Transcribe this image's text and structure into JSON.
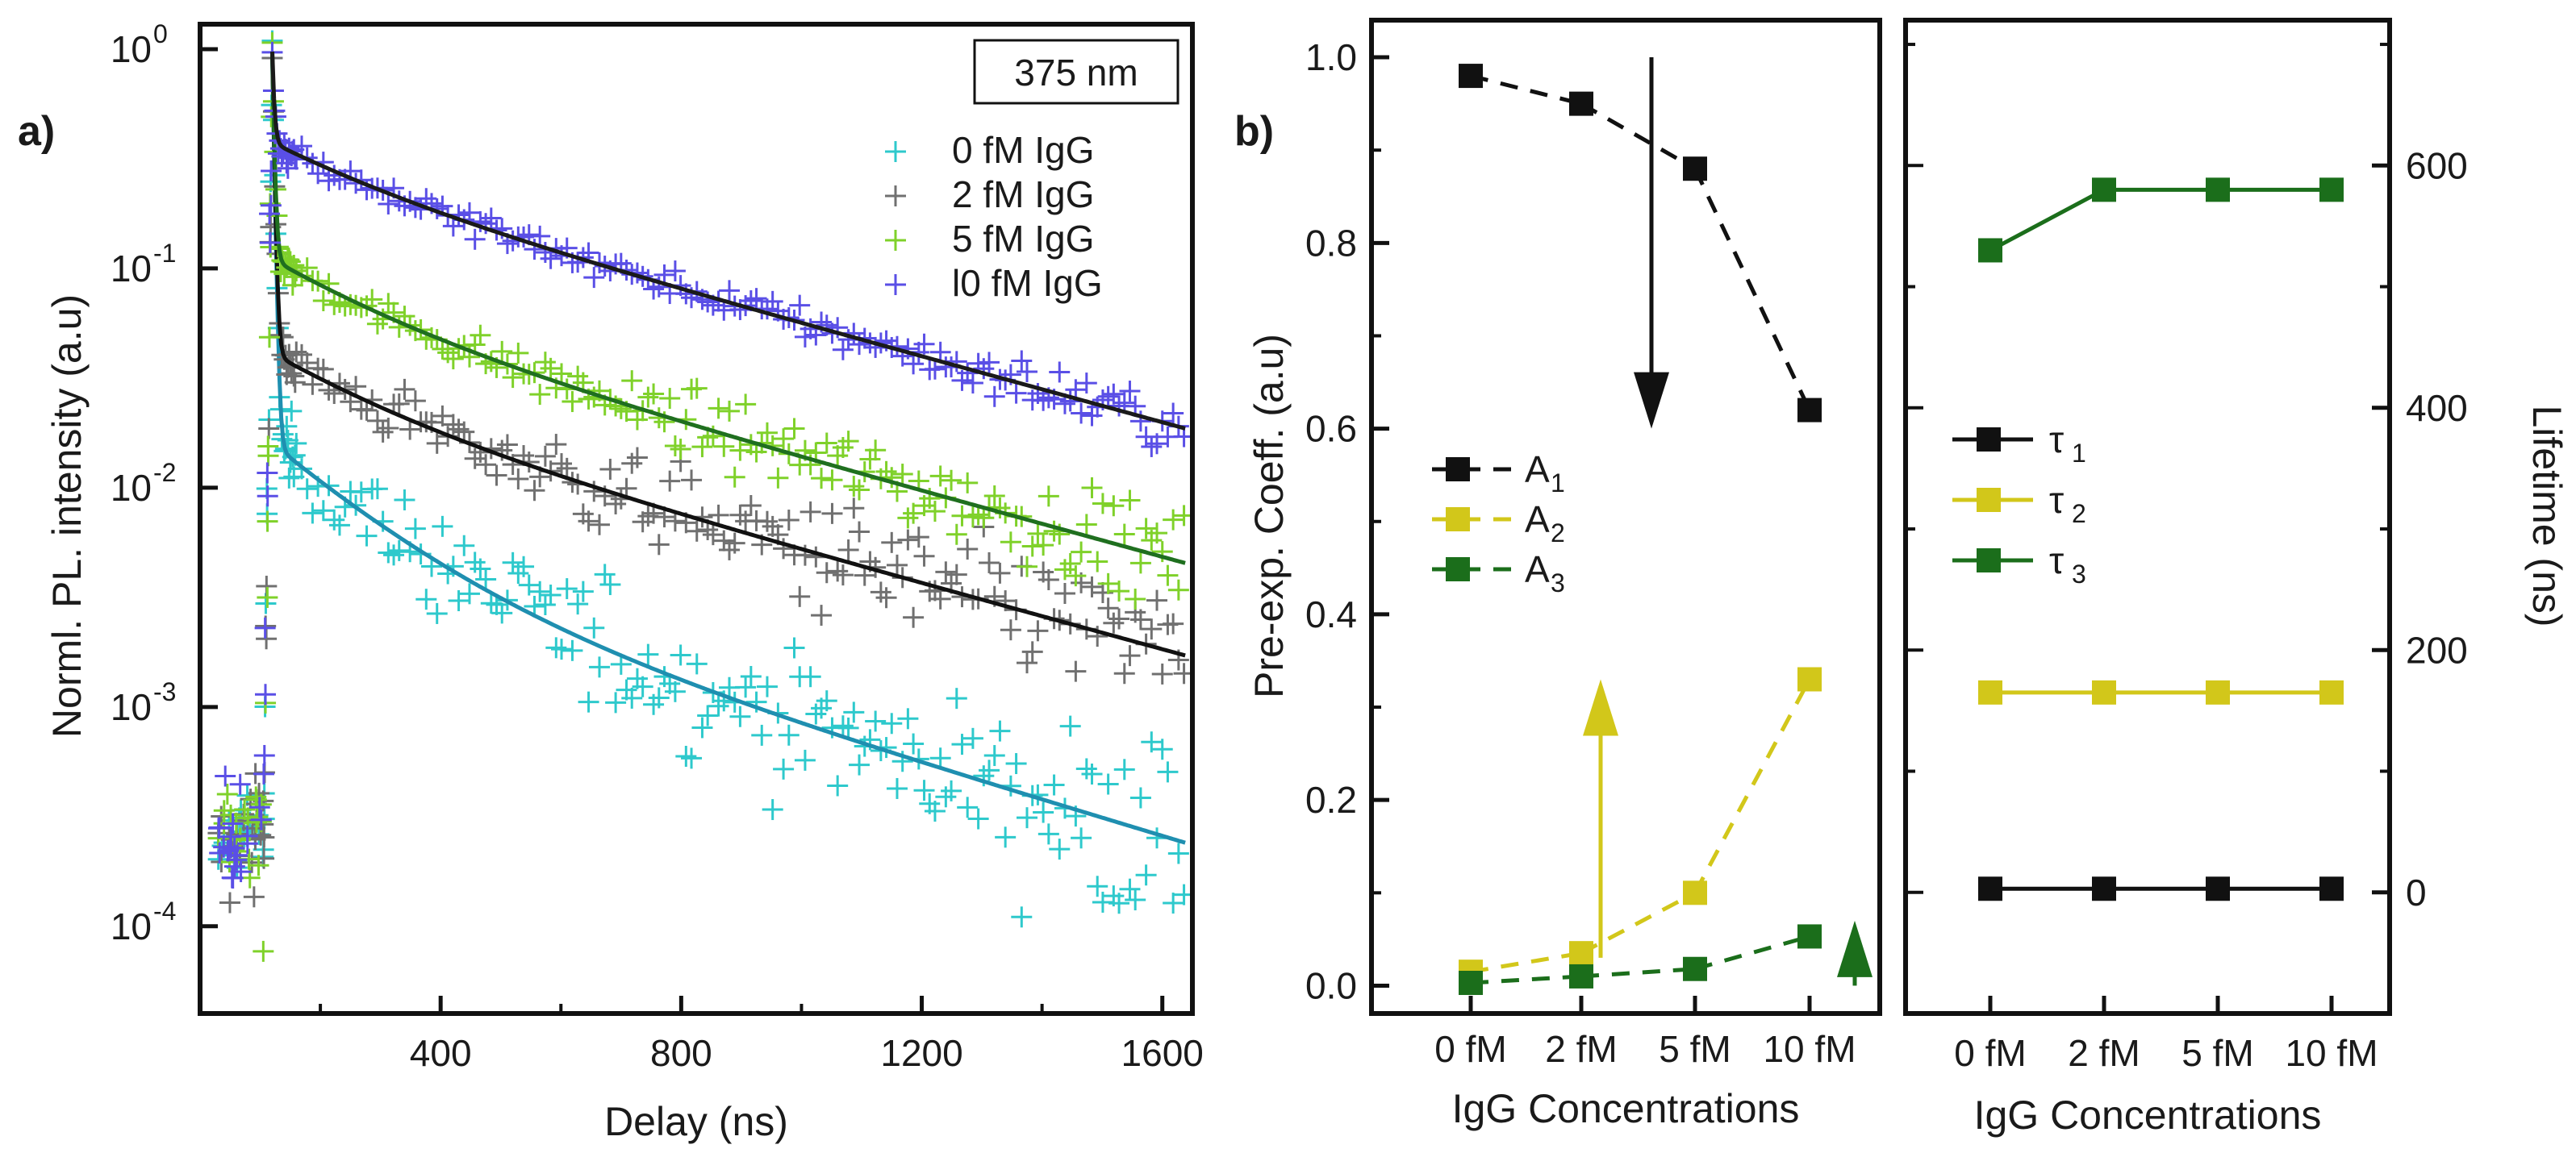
{
  "chart_data": [
    {
      "panel": "a)",
      "type": "scatter",
      "scale": "log",
      "title": "",
      "box_label": "375 nm",
      "xlabel": "Delay (ns)",
      "ylabel": "Norml. PL. intensity (a.u)",
      "xlim": [
        0,
        1650
      ],
      "ylim": [
        4e-05,
        1.3
      ],
      "xticks": [
        400,
        800,
        1200,
        1600
      ],
      "xtick_labels": [
        "400",
        "800",
        "1200",
        "1600"
      ],
      "yticks": [
        1,
        0.1,
        0.01,
        0.001,
        0.0001
      ],
      "ytick_labels": [
        "10",
        "10",
        "10",
        "10",
        "10"
      ],
      "ytick_exponents": [
        "0",
        "-1",
        "-2",
        "-3",
        "-4"
      ],
      "legend_position": "top-right",
      "pulse_peak_x": 120,
      "series": [
        {
          "name": "0 fM IgG",
          "color": "#2ec9cc",
          "fit_color": "#1f8fb0",
          "fit": {
            "a1": 0.9,
            "t1": 3,
            "a2": 0.0117,
            "t2": 160,
            "a3": 0.0042,
            "t3": 530
          }
        },
        {
          "name": "2 fM IgG",
          "color": "#707070",
          "fit_color": "#111111",
          "fit": {
            "a1": 0.9,
            "t1": 3,
            "a2": 0.0175,
            "t2": 170,
            "a3": 0.0235,
            "t3": 580
          }
        },
        {
          "name": "5 fM IgG",
          "color": "#7fd12a",
          "fit_color": "#1f6f1f",
          "fit": {
            "a1": 0.85,
            "t1": 3,
            "a2": 0.048,
            "t2": 170,
            "a3": 0.062,
            "t3": 580
          }
        },
        {
          "name": "l0 fM IgG",
          "color": "#5a4fe6",
          "fit_color": "#1a1a1a",
          "fit": {
            "a1": 0.6,
            "t1": 3,
            "a2": 0.12,
            "t2": 165,
            "a3": 0.255,
            "t3": 580
          }
        }
      ]
    },
    {
      "panel": "b)",
      "type": "line",
      "xlabel": "IgG Concentrations",
      "ylabel": "Pre-exp. Coeff. (a.u)",
      "categories": [
        "0 fM",
        "2 fM",
        "5 fM",
        "10 fM"
      ],
      "ylim": [
        -0.03,
        1.04
      ],
      "yticks": [
        0.0,
        0.2,
        0.4,
        0.6,
        0.8,
        1.0
      ],
      "ytick_labels": [
        "0.0",
        "0.2",
        "0.4",
        "0.6",
        "0.8",
        "1.0"
      ],
      "legend_position": "center-left",
      "series": [
        {
          "name": "A",
          "sub": "1",
          "color": "#111111",
          "values": [
            0.98,
            0.95,
            0.88,
            0.62
          ]
        },
        {
          "name": "A",
          "sub": "2",
          "color": "#d2c71a",
          "values": [
            0.015,
            0.035,
            0.1,
            0.33
          ]
        },
        {
          "name": "A",
          "sub": "3",
          "color": "#1b6e1b",
          "values": [
            0.003,
            0.01,
            0.018,
            0.053
          ]
        }
      ],
      "annotations": [
        {
          "type": "arrow",
          "direction": "down",
          "color": "#111111",
          "x_category": 1.6,
          "from": 1.0,
          "to": 0.6
        },
        {
          "type": "arrow",
          "direction": "up",
          "color": "#d2c71a",
          "x_category": 1.15,
          "from": 0.03,
          "to": 0.33
        },
        {
          "type": "arrow",
          "direction": "up",
          "color": "#1b6e1b",
          "x_category": 3.4,
          "from": 0.0,
          "to": 0.07
        }
      ]
    },
    {
      "panel": "",
      "type": "line",
      "xlabel": "IgG Concentrations",
      "ylabel": "Lifetime (ns)",
      "categories": [
        "0 fM",
        "2 fM",
        "5 fM",
        "10 fM"
      ],
      "ylim": [
        -100,
        720
      ],
      "yticks": [
        0,
        200,
        400,
        600
      ],
      "ytick_labels": [
        "0",
        "200",
        "400",
        "600"
      ],
      "legend_position": "center-left",
      "series": [
        {
          "name": "τ",
          "sub": "1",
          "color": "#111111",
          "values": [
            3,
            3,
            3,
            3
          ]
        },
        {
          "name": "τ",
          "sub": "2",
          "color": "#d2c71a",
          "values": [
            165,
            165,
            165,
            165
          ]
        },
        {
          "name": "τ",
          "sub": "3",
          "color": "#1b6e1b",
          "values": [
            530,
            580,
            580,
            580
          ]
        }
      ]
    }
  ]
}
